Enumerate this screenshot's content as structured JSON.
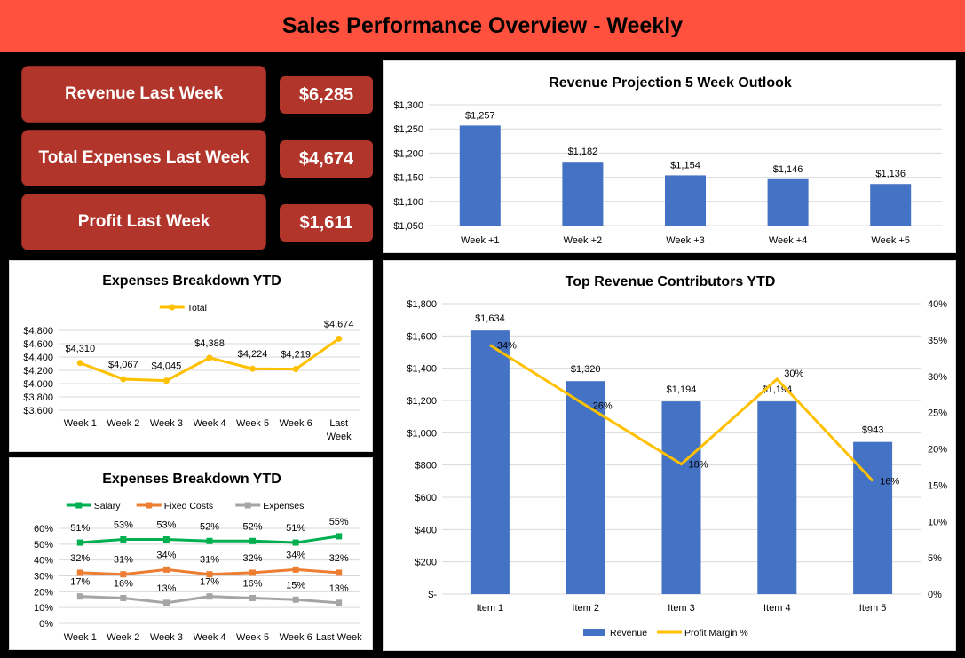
{
  "header": {
    "title": "Sales Performance Overview - Weekly"
  },
  "kpis": [
    {
      "label": "Revenue Last Week",
      "value": "$6,285"
    },
    {
      "label": "Total Expenses Last Week",
      "value": "$4,674"
    },
    {
      "label": "Profit Last Week",
      "value": "$1,611"
    }
  ],
  "colors": {
    "header": "#ff513d",
    "kpi": "#b1352b",
    "bar": "#4472c4",
    "gold": "#ffc000",
    "green": "#00b050",
    "orange": "#ed7d31",
    "gray": "#a5a5a5"
  },
  "chart_data": [
    {
      "id": "projection",
      "type": "bar",
      "title": "Revenue Projection 5 Week Outlook",
      "categories": [
        "Week +1",
        "Week +2",
        "Week +3",
        "Week +4",
        "Week +5"
      ],
      "values": [
        1257,
        1182,
        1154,
        1146,
        1136
      ],
      "data_labels": [
        "$1,257",
        "$1,182",
        "$1,154",
        "$1,146",
        "$1,136"
      ],
      "ylim": [
        1050,
        1300
      ],
      "yticks": [
        "$1,050",
        "$1,100",
        "$1,150",
        "$1,200",
        "$1,250",
        "$1,300"
      ],
      "grid": true,
      "color": "#4472c4"
    },
    {
      "id": "expenses-total",
      "type": "line",
      "title": "Expenses Breakdown YTD",
      "categories": [
        "Week 1",
        "Week 2",
        "Week 3",
        "Week 4",
        "Week 5",
        "Week 6",
        "Last Week"
      ],
      "series": [
        {
          "name": "Total",
          "values": [
            4310,
            4067,
            4045,
            4388,
            4224,
            4219,
            4674
          ],
          "data_labels": [
            "$4,310",
            "$4,067",
            "$4,045",
            "$4,388",
            "$4,224",
            "$4,219",
            "$4,674"
          ],
          "color": "#ffc000",
          "marker": "circle"
        }
      ],
      "ylim": [
        3600,
        4800
      ],
      "yticks": [
        "$3,600",
        "$3,800",
        "$4,000",
        "$4,200",
        "$4,400",
        "$4,600",
        "$4,800"
      ],
      "legend": "top",
      "grid": true
    },
    {
      "id": "expenses-pct",
      "type": "line",
      "title": "Expenses Breakdown YTD",
      "categories": [
        "Week 1",
        "Week 2",
        "Week 3",
        "Week 4",
        "Week 5",
        "Week 6",
        "Last Week"
      ],
      "series": [
        {
          "name": "Salary",
          "values": [
            51,
            53,
            53,
            52,
            52,
            51,
            55
          ],
          "data_labels": [
            "51%",
            "53%",
            "53%",
            "52%",
            "52%",
            "51%",
            "55%"
          ],
          "color": "#00b050",
          "marker": "square"
        },
        {
          "name": "Fixed Costs",
          "values": [
            32,
            31,
            34,
            31,
            32,
            34,
            32
          ],
          "data_labels": [
            "32%",
            "31%",
            "34%",
            "31%",
            "32%",
            "34%",
            "32%"
          ],
          "color": "#ed7d31",
          "marker": "square"
        },
        {
          "name": "Expenses",
          "values": [
            17,
            16,
            13,
            17,
            16,
            15,
            13
          ],
          "data_labels": [
            "17%",
            "16%",
            "13%",
            "17%",
            "16%",
            "15%",
            "13%"
          ],
          "color": "#a5a5a5",
          "marker": "square"
        }
      ],
      "ylim": [
        0,
        60
      ],
      "yticks": [
        "0%",
        "10%",
        "20%",
        "30%",
        "40%",
        "50%",
        "60%"
      ],
      "legend": "top",
      "grid": true
    },
    {
      "id": "top-revenue",
      "type": "bar+line",
      "title": "Top Revenue Contributors YTD",
      "categories": [
        "Item 1",
        "Item 2",
        "Item 3",
        "Item 4",
        "Item 5"
      ],
      "series": [
        {
          "name": "Revenue",
          "axis": "left",
          "values": [
            1634,
            1320,
            1194,
            1194,
            943
          ],
          "data_labels": [
            "$1,634",
            "$1,320",
            "$1,194",
            "$1,194",
            "$943"
          ],
          "color": "#4472c4"
        },
        {
          "name": "Profit Margin %",
          "axis": "right",
          "values": [
            34.3,
            26,
            17.9,
            29.6,
            15.6
          ],
          "data_labels": [
            "34%",
            "26%",
            "18%",
            "30%",
            "16%"
          ],
          "color": "#ffc000"
        }
      ],
      "ylim": [
        0,
        1800
      ],
      "yticks": [
        "$-",
        "$200",
        "$400",
        "$600",
        "$800",
        "$1,000",
        "$1,200",
        "$1,400",
        "$1,600",
        "$1,800"
      ],
      "y2lim": [
        0,
        40
      ],
      "y2ticks": [
        "0%",
        "5%",
        "10%",
        "15%",
        "20%",
        "25%",
        "30%",
        "35%",
        "40%"
      ],
      "legend": "bottom",
      "grid": true
    }
  ]
}
